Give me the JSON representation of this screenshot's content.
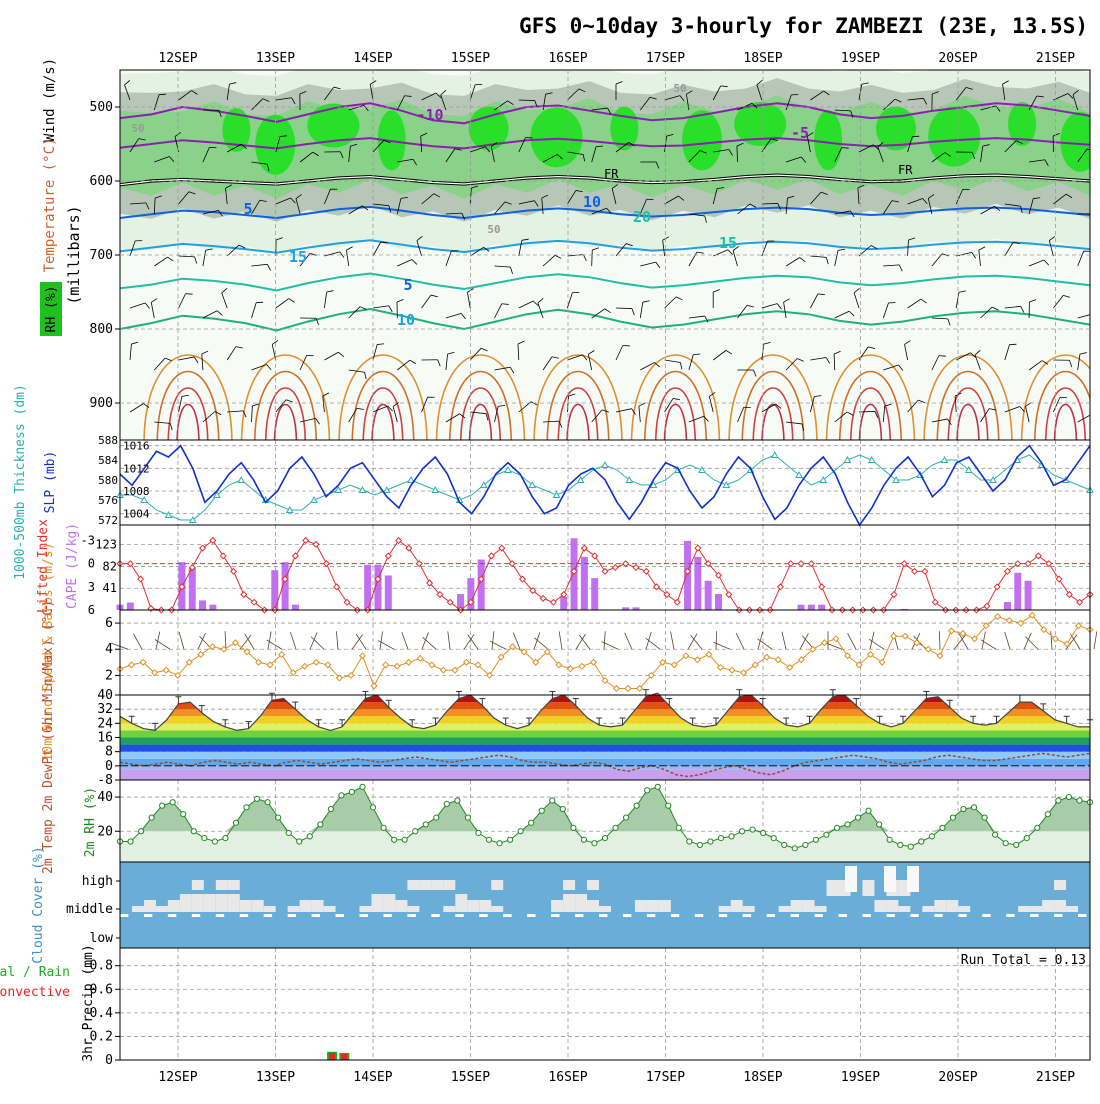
{
  "title": "GFS 0~10day 3-hourly for ZAMBEZI (23E, 13.5S)",
  "dates": [
    "12SEP",
    "13SEP",
    "14SEP",
    "15SEP",
    "16SEP",
    "17SEP",
    "18SEP",
    "19SEP",
    "20SEP",
    "21SEP"
  ],
  "colors": {
    "grid": "#9a9a9a",
    "rh_dark": "#b7c7b7",
    "rh_mid": "#8ad18a",
    "rh_bright": "#1ee01e",
    "rh_light": "#e4f2e4",
    "slp": "#1030c8",
    "thick": "#2ab0b0",
    "li": "#e03030",
    "cape": "#c070f0",
    "wind10": "#e09020",
    "barb": "#604020",
    "cloud_bg": "#6aaed8",
    "cloud": "#e8e8e8",
    "precip_total": "#22aa22",
    "precip_conv": "#ee2222",
    "rh2m": "#228822"
  },
  "chart_data": [
    {
      "id": "upper",
      "type": "heatmap",
      "ylabel": "(millibars)",
      "left_labels": [
        "Wind (m/s)",
        "Temperature (°C)",
        "RH (%)"
      ],
      "y_ticks": [
        500,
        600,
        700,
        800,
        900
      ],
      "ylim": [
        450,
        950
      ],
      "freezing_label": "FR",
      "contour_labels": [
        "-10",
        "-5",
        "5",
        "10",
        "15",
        "20",
        "5",
        "10",
        "15",
        "50",
        "50",
        "50"
      ],
      "isotherms": [
        {
          "label": "-10",
          "level": [
            515,
            510,
            500,
            505,
            512,
            520,
            510,
            500,
            495,
            505,
            518,
            522,
            510,
            500,
            498,
            505,
            512,
            518,
            515,
            508,
            500,
            495,
            500,
            510,
            515,
            512,
            505,
            500,
            495,
            498,
            505,
            512
          ]
        },
        {
          "label": "-5",
          "level": [
            555,
            550,
            545,
            548,
            552,
            556,
            550,
            545,
            542,
            548,
            553,
            556,
            550,
            545,
            543,
            546,
            550,
            553,
            552,
            548,
            544,
            542,
            545,
            550,
            553,
            551,
            547,
            544,
            542,
            544,
            548,
            551
          ]
        },
        {
          "label": "FR",
          "level": [
            605,
            600,
            598,
            600,
            602,
            604,
            600,
            596,
            594,
            598,
            602,
            604,
            600,
            596,
            594,
            596,
            600,
            602,
            601,
            598,
            594,
            592,
            594,
            598,
            601,
            600,
            596,
            593,
            592,
            594,
            597,
            600
          ]
        },
        {
          "label": "5",
          "level": [
            650,
            645,
            640,
            642,
            646,
            650,
            644,
            638,
            635,
            640,
            646,
            650,
            645,
            640,
            637,
            640,
            645,
            648,
            646,
            642,
            638,
            636,
            638,
            643,
            646,
            644,
            640,
            637,
            636,
            638,
            642,
            646
          ]
        },
        {
          "label": "10",
          "level": [
            695,
            690,
            685,
            688,
            692,
            697,
            690,
            684,
            680,
            686,
            692,
            696,
            690,
            684,
            681,
            684,
            690,
            694,
            692,
            688,
            684,
            682,
            684,
            689,
            692,
            690,
            686,
            683,
            682,
            684,
            688,
            692
          ]
        },
        {
          "label": "15",
          "level": [
            745,
            740,
            732,
            735,
            740,
            748,
            738,
            730,
            725,
            732,
            740,
            746,
            738,
            730,
            726,
            730,
            738,
            744,
            741,
            736,
            731,
            728,
            730,
            737,
            741,
            738,
            733,
            729,
            728,
            731,
            736,
            741
          ]
        },
        {
          "label": "20",
          "level": [
            800,
            792,
            782,
            786,
            792,
            802,
            790,
            780,
            773,
            782,
            792,
            800,
            790,
            780,
            774,
            780,
            790,
            798,
            794,
            787,
            780,
            776,
            780,
            789,
            794,
            790,
            783,
            778,
            776,
            780,
            787,
            794
          ]
        }
      ]
    },
    {
      "id": "slp",
      "type": "line",
      "series": [
        {
          "name": "SLP (mb)",
          "axis": "right",
          "ylim": [
            1002,
            1017
          ],
          "ticks": [
            1004,
            1008,
            1012,
            1016
          ],
          "values": [
            1011,
            1009,
            1012,
            1015,
            1014,
            1016,
            1012,
            1006,
            1008,
            1011,
            1013,
            1010,
            1006,
            1008,
            1012,
            1014,
            1011,
            1007,
            1009,
            1012,
            1013,
            1010,
            1007,
            1005,
            1009,
            1012,
            1014,
            1011,
            1006,
            1004,
            1007,
            1011,
            1013,
            1011,
            1007,
            1004,
            1005,
            1009,
            1011,
            1012,
            1010,
            1006,
            1003,
            1006,
            1010,
            1013,
            1012,
            1008,
            1005,
            1007,
            1011,
            1014,
            1012,
            1007,
            1003,
            1005,
            1009,
            1012,
            1014,
            1011,
            1006,
            1002,
            1005,
            1009,
            1012,
            1014,
            1011,
            1007,
            1009,
            1013,
            1014,
            1011,
            1008,
            1010,
            1014,
            1016,
            1013,
            1009,
            1010,
            1013,
            1016
          ]
        },
        {
          "name": "1000-500mb Thickness (dm)",
          "axis": "left",
          "ylim": [
            571,
            588
          ],
          "ticks": [
            572,
            576,
            580,
            584,
            588
          ],
          "values": [
            577,
            577,
            576,
            574,
            573,
            572,
            572,
            574,
            577,
            579,
            580,
            578,
            576,
            575,
            574,
            574,
            576,
            577,
            578,
            579,
            578,
            577,
            578,
            579,
            580,
            579,
            578,
            577,
            576,
            577,
            579,
            581,
            582,
            581,
            579,
            578,
            577,
            578,
            580,
            582,
            583,
            582,
            580,
            579,
            579,
            580,
            582,
            583,
            582,
            580,
            579,
            580,
            582,
            584,
            585,
            583,
            581,
            579,
            580,
            582,
            584,
            585,
            584,
            582,
            580,
            580,
            581,
            583,
            584,
            584,
            582,
            580,
            580,
            582,
            584,
            585,
            583,
            581,
            580,
            579,
            578
          ]
        }
      ]
    },
    {
      "id": "cape",
      "type": "bar",
      "ylabel_left": "Lifted Index",
      "ylabel_right": "CAPE (J/kg)",
      "li_ticks": [
        -3,
        0,
        3,
        6
      ],
      "cape_ticks": [
        41,
        82,
        123
      ],
      "cape_values": [
        10,
        14,
        0,
        0,
        0,
        2,
        90,
        80,
        18,
        10,
        0,
        0,
        0,
        0,
        0,
        75,
        90,
        10,
        0,
        0,
        0,
        0,
        0,
        0,
        85,
        85,
        65,
        0,
        0,
        0,
        0,
        0,
        0,
        30,
        60,
        95,
        0,
        0,
        0,
        0,
        0,
        0,
        0,
        25,
        135,
        100,
        60,
        0,
        0,
        5,
        5,
        0,
        0,
        0,
        0,
        130,
        100,
        55,
        30,
        0,
        0,
        0,
        0,
        0,
        0,
        0,
        10,
        10,
        10,
        0,
        0,
        0,
        0,
        0,
        0,
        0,
        2,
        0,
        0,
        0,
        0,
        0,
        0,
        0,
        0,
        0,
        15,
        70,
        55,
        0,
        0,
        0,
        0,
        0,
        0
      ],
      "li_values": [
        0,
        0,
        2,
        5.8,
        6,
        6,
        3,
        0.5,
        -2,
        -3,
        -1,
        1,
        4,
        5,
        6,
        6,
        2,
        -1,
        -3,
        -2.5,
        0,
        3,
        5,
        6,
        6,
        2,
        -1,
        -3,
        -2,
        0,
        2.5,
        4,
        5,
        6,
        5,
        2,
        -1,
        -2,
        0,
        2,
        3.5,
        4.5,
        5,
        4,
        1,
        -2,
        -1,
        1,
        0.5,
        0,
        0.5,
        1,
        3,
        4,
        5,
        1,
        -2,
        0,
        1.5,
        4,
        6,
        6,
        6,
        6,
        3,
        0,
        0,
        0,
        3,
        6,
        6,
        6,
        6,
        6,
        6,
        4,
        0,
        1,
        1,
        5,
        6,
        6,
        6,
        6,
        5.5,
        3,
        1,
        0,
        0,
        -1,
        0,
        2,
        4,
        5,
        4
      ]
    },
    {
      "id": "wind10",
      "type": "line",
      "ylabel": "10m Wind Speed & Barbs (m/s)",
      "ticks": [
        2,
        4,
        6
      ],
      "ylim": [
        0.5,
        7
      ],
      "values": [
        2.5,
        2.8,
        3,
        2.2,
        2.4,
        2,
        3,
        3.6,
        4.2,
        4,
        4.5,
        3.8,
        3,
        2.8,
        3.6,
        2.2,
        2.7,
        3,
        2.8,
        1.8,
        2,
        3.5,
        1.2,
        2.8,
        2.7,
        3,
        3.3,
        2.8,
        2.4,
        2.4,
        3,
        2.8,
        2,
        3.4,
        4.2,
        3.8,
        3,
        3.8,
        2.8,
        2.5,
        2.7,
        3,
        1.6,
        1,
        1,
        1,
        2,
        3,
        2.8,
        3.5,
        3.2,
        3.6,
        2.6,
        2.4,
        2.2,
        2.8,
        3.4,
        3.2,
        2.6,
        3.2,
        4,
        4.5,
        4.8,
        3.5,
        2.8,
        3.6,
        3,
        5,
        5,
        4.5,
        4,
        3.5,
        5.4,
        5.2,
        4.8,
        5.8,
        6.5,
        6.2,
        6,
        6.6,
        5.5,
        4.8,
        4.4,
        5.8,
        5.5
      ]
    },
    {
      "id": "temp2m",
      "type": "area",
      "ylabel": "2m Temp 2m DewPt (6hr Min/Max) (°C)",
      "ticks": [
        -8,
        0,
        8,
        16,
        24,
        32,
        40
      ],
      "ylim": [
        -8,
        40
      ],
      "temp_values": [
        28,
        24,
        21,
        20,
        26,
        35,
        36,
        30,
        25,
        22,
        20,
        21,
        28,
        37,
        38,
        32,
        26,
        22,
        20,
        22,
        30,
        38,
        40,
        33,
        27,
        22,
        21,
        23,
        31,
        38,
        40,
        34,
        27,
        23,
        21,
        23,
        31,
        38,
        40,
        34,
        27,
        23,
        22,
        23,
        31,
        39,
        41,
        34,
        27,
        23,
        22,
        23,
        31,
        39,
        40,
        34,
        27,
        23,
        22,
        24,
        32,
        39,
        40,
        34,
        28,
        24,
        22,
        24,
        31,
        38,
        39,
        33,
        27,
        24,
        23,
        24,
        30,
        36,
        36,
        31,
        26,
        24,
        22,
        22
      ],
      "dew_values": [
        2,
        1,
        0,
        1,
        2,
        1,
        0,
        2,
        3,
        2,
        1,
        2,
        1,
        0,
        2,
        3,
        2,
        1,
        2,
        3,
        4,
        3,
        2,
        3,
        4,
        5,
        4,
        3,
        2,
        3,
        4,
        5,
        6,
        5,
        3,
        2,
        2,
        1,
        0,
        1,
        2,
        1,
        -2,
        -3,
        -1,
        0,
        -2,
        -5,
        -6,
        -5,
        -3,
        -1,
        0,
        -2,
        -4,
        -5,
        -3,
        0,
        2,
        3,
        4,
        5,
        6,
        5,
        4,
        2,
        1,
        2,
        3,
        5,
        6,
        5,
        4,
        3,
        3,
        4,
        5,
        6,
        7,
        6,
        5,
        6,
        7
      ]
    },
    {
      "id": "rh2m",
      "type": "area",
      "ylabel": "2m RH (%)",
      "ticks": [
        20,
        40
      ],
      "ylim": [
        2,
        50
      ],
      "values": [
        14,
        14,
        20,
        28,
        35,
        37,
        30,
        20,
        16,
        14,
        16,
        25,
        34,
        39,
        37,
        28,
        19,
        14,
        17,
        24,
        33,
        41,
        43,
        46,
        34,
        22,
        15,
        15,
        20,
        24,
        28,
        36,
        38,
        28,
        19,
        15,
        13,
        15,
        20,
        25,
        32,
        38,
        33,
        22,
        15,
        13,
        16,
        22,
        28,
        35,
        44,
        46,
        35,
        22,
        14,
        12,
        14,
        16,
        17,
        20,
        21,
        19,
        16,
        12,
        10,
        12,
        15,
        18,
        22,
        24,
        28,
        32,
        24,
        15,
        12,
        11,
        14,
        17,
        22,
        28,
        33,
        34,
        28,
        18,
        13,
        12,
        16,
        22,
        30,
        38,
        40,
        38,
        37
      ]
    },
    {
      "id": "cloud",
      "type": "heatmap",
      "ylabel": "Cloud Cover (%)",
      "levels": [
        "high",
        "middle",
        "low"
      ]
    },
    {
      "id": "precip",
      "type": "bar",
      "ylabel": "3hr Precip (mm)",
      "left_labels": [
        "Total / Rain",
        "Convective"
      ],
      "ticks": [
        0,
        0.2,
        0.4,
        0.6,
        0.8
      ],
      "ylim": [
        0,
        0.95
      ],
      "run_total": "Run Total = 0.13",
      "values": [
        {
          "t": 21,
          "total": 0.07,
          "conv": 0.06
        },
        {
          "t": 22,
          "total": 0.06,
          "conv": 0.05
        }
      ]
    }
  ]
}
